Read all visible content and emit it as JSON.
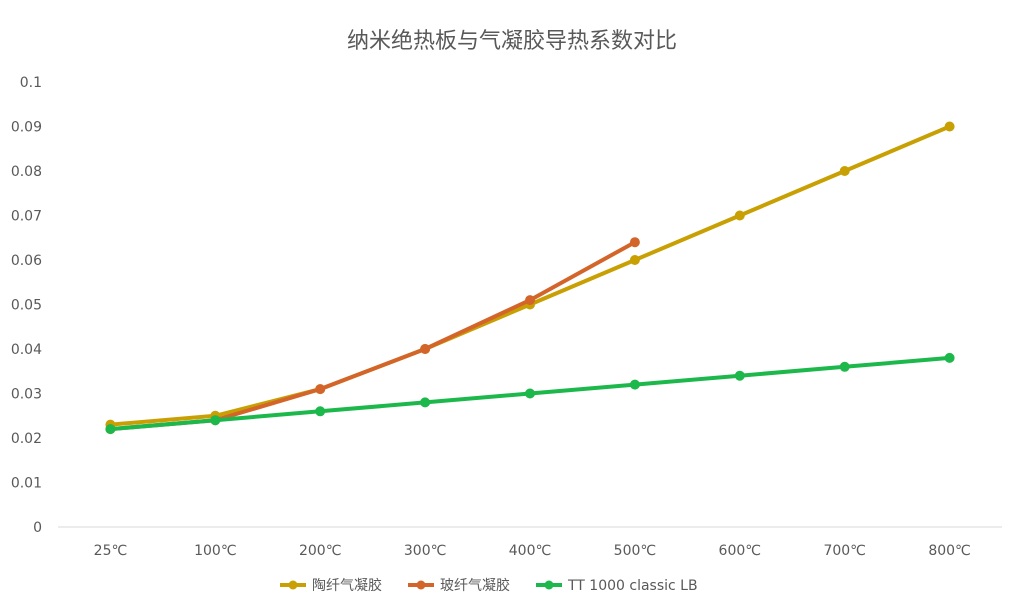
{
  "chart_data": {
    "type": "line",
    "title": "纳米绝热板与气凝胶导热系数对比",
    "xlabel": "",
    "ylabel": "",
    "categories": [
      "25℃",
      "100℃",
      "200℃",
      "300℃",
      "400℃",
      "500℃",
      "600℃",
      "700℃",
      "800℃"
    ],
    "ylim": [
      0,
      0.1
    ],
    "yticks": [
      "0",
      "0.01",
      "0.02",
      "0.03",
      "0.04",
      "0.05",
      "0.06",
      "0.07",
      "0.08",
      "0.09",
      "0.1"
    ],
    "grid": false,
    "legend_position": "bottom",
    "series": [
      {
        "name": "陶纤气凝胶",
        "color": "#C9A004",
        "values": [
          0.023,
          0.025,
          0.031,
          0.04,
          0.05,
          0.06,
          0.07,
          0.08,
          0.09
        ]
      },
      {
        "name": "玻纤气凝胶",
        "color": "#D4652A",
        "values": [
          0.022,
          0.024,
          0.031,
          0.04,
          0.051,
          0.064,
          null,
          null,
          null
        ]
      },
      {
        "name": "TT 1000 classic LB",
        "color": "#1DB84B",
        "values": [
          0.022,
          0.024,
          0.026,
          0.028,
          0.03,
          0.032,
          0.034,
          0.036,
          0.038
        ]
      }
    ]
  }
}
